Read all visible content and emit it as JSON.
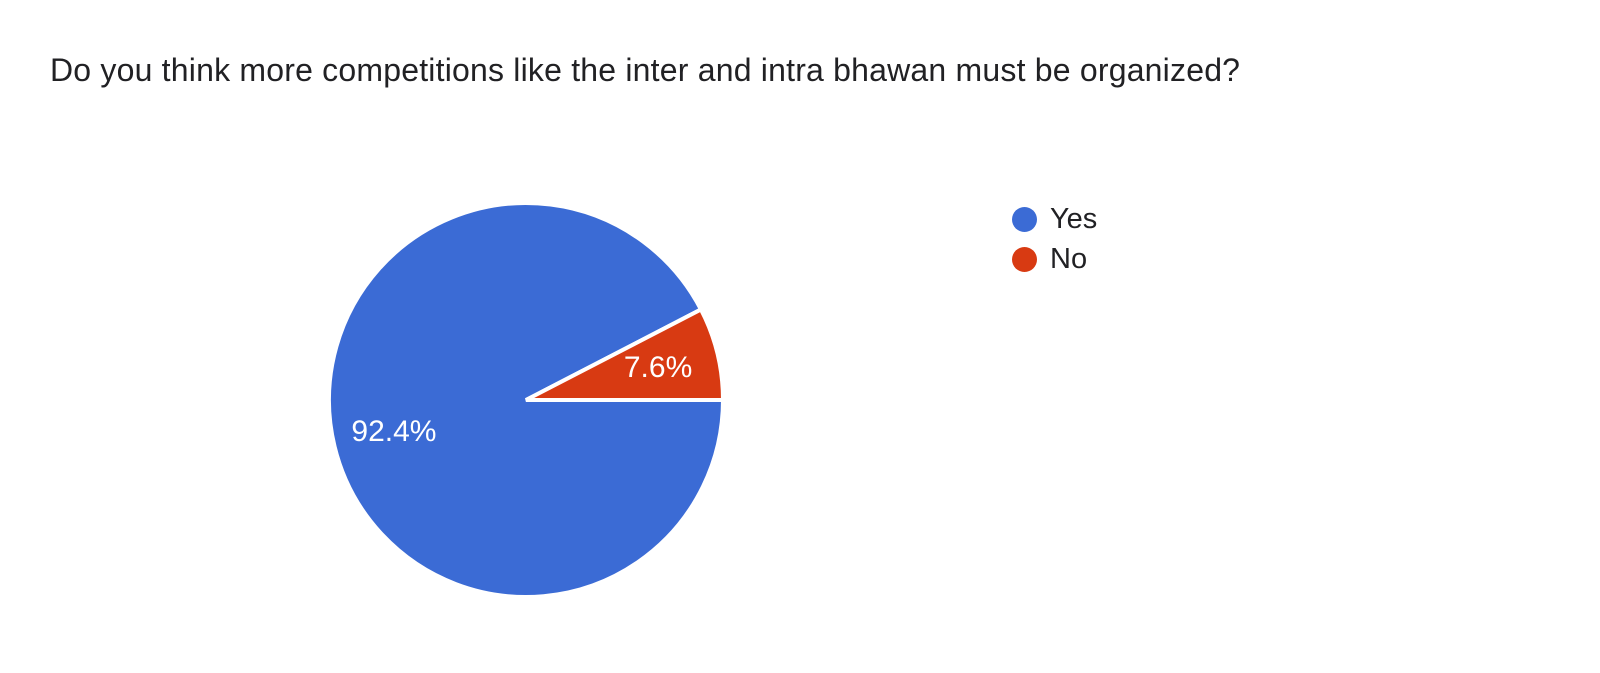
{
  "page": {
    "background": "#ffffff",
    "text_color": "#212124"
  },
  "chart_data": {
    "type": "pie",
    "title": "Do you think more competitions like the inter and intra bhawan must be organized?",
    "series": [
      {
        "name": "Yes",
        "value": 92.4,
        "label": "92.4%",
        "color": "#3b6bd5"
      },
      {
        "name": "No",
        "value": 7.6,
        "label": "7.6%",
        "color": "#d83a12"
      }
    ],
    "legend_position": "right",
    "start_angle_deg": 0,
    "direction": "clockwise",
    "slice_label_color": "#ffffff",
    "slice_border_color": "#ffffff",
    "label_radius_factor": 0.69
  }
}
